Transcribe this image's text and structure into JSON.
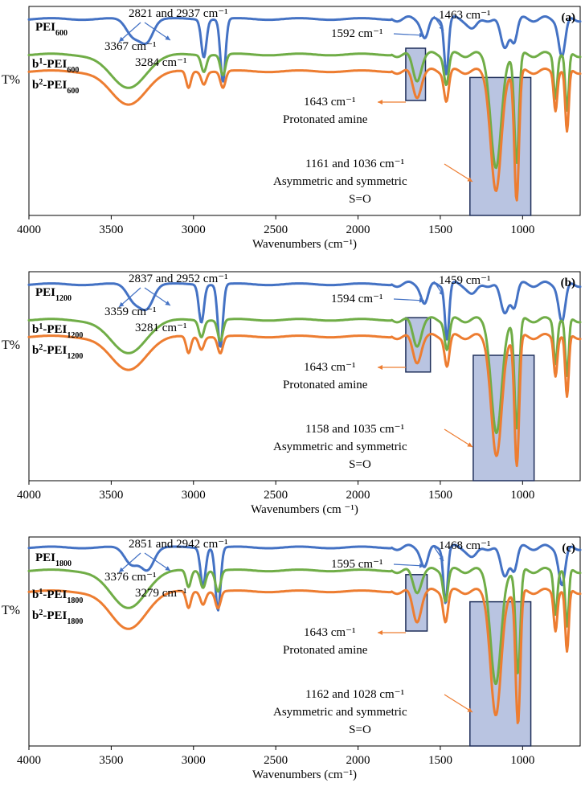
{
  "colors": {
    "blue": "#4472c4",
    "green": "#70ad47",
    "orange": "#ed7d31",
    "box_fill": "#7f94c8",
    "box_edge": "#1f2f5a"
  },
  "chart_data": [
    {
      "type": "line",
      "panel": "(a)",
      "xlabel": "Wavenumbers (cm⁻¹)",
      "ylabel": "T%",
      "xlim": [
        4000,
        650
      ],
      "ylim": [
        0,
        100
      ],
      "xticks": [
        "4000",
        "3500",
        "3000",
        "2500",
        "2000",
        "1500",
        "1000"
      ],
      "xtick_values": [
        4000,
        3500,
        3000,
        2500,
        2000,
        1500,
        1000
      ],
      "series": [
        {
          "name": "PEI",
          "sub": "600",
          "sup": "",
          "color": "#4472c4",
          "base": 94,
          "peaks": [
            [
              3367,
              8,
              60
            ],
            [
              3284,
              10,
              55
            ],
            [
              2937,
              18,
              22
            ],
            [
              2821,
              30,
              22
            ],
            [
              1592,
              9,
              30
            ],
            [
              1463,
              26,
              18
            ],
            [
              1300,
              5,
              40
            ],
            [
              1110,
              14,
              35
            ],
            [
              1050,
              10,
              25
            ],
            [
              760,
              18,
              28
            ]
          ]
        },
        {
          "name": "-PEI",
          "sub": "600",
          "sup": "1",
          "prefix": "b",
          "color": "#70ad47",
          "base": 77,
          "peaks": [
            [
              3400,
              16,
              150
            ],
            [
              2937,
              8,
              22
            ],
            [
              2821,
              10,
              22
            ],
            [
              1643,
              12,
              35
            ],
            [
              1463,
              14,
              20
            ],
            [
              1161,
              55,
              45
            ],
            [
              1036,
              52,
              20
            ],
            [
              800,
              20,
              15
            ],
            [
              730,
              28,
              15
            ]
          ]
        },
        {
          "name": "-PEI",
          "sub": "600",
          "sup": "2",
          "prefix": "b",
          "color": "#ed7d31",
          "base": 69,
          "peaks": [
            [
              3400,
              16,
              150
            ],
            [
              3030,
              8,
              20
            ],
            [
              2937,
              6,
              22
            ],
            [
              2821,
              8,
              22
            ],
            [
              1643,
              12,
              35
            ],
            [
              1463,
              14,
              20
            ],
            [
              1161,
              58,
              45
            ],
            [
              1036,
              62,
              20
            ],
            [
              800,
              18,
              15
            ],
            [
              730,
              30,
              15
            ]
          ]
        }
      ],
      "boxes": [
        [
          1710,
          1590,
          80,
          55
        ],
        [
          1320,
          950,
          66,
          0
        ]
      ],
      "annotations": [
        {
          "text": "2821 and 2937 cm⁻¹"
        },
        {
          "text": "3367 cm⁻¹"
        },
        {
          "text": "3284 cm⁻¹"
        },
        {
          "text": "1463 cm⁻¹"
        },
        {
          "text": "1592 cm⁻¹"
        },
        {
          "text": "1643 cm⁻¹"
        },
        {
          "text": "Protonated amine"
        },
        {
          "text": "1161 and 1036 cm⁻¹"
        },
        {
          "text": "Asymmetric and symmetric"
        },
        {
          "text": "S=O"
        }
      ]
    },
    {
      "type": "line",
      "panel": "(b)",
      "xlabel": "Wavenumbers (cm ⁻¹)",
      "ylabel": "T%",
      "xlim": [
        4000,
        650
      ],
      "ylim": [
        0,
        100
      ],
      "xticks": [
        "4000",
        "3500",
        "3000",
        "2500",
        "2000",
        "1500",
        "1000"
      ],
      "xtick_values": [
        4000,
        3500,
        3000,
        2500,
        2000,
        1500,
        1000
      ],
      "series": [
        {
          "name": "PEI",
          "sub": "1200",
          "sup": "",
          "color": "#4472c4",
          "base": 94,
          "peaks": [
            [
              3359,
              8,
              60
            ],
            [
              3281,
              10,
              55
            ],
            [
              2952,
              18,
              22
            ],
            [
              2837,
              30,
              22
            ],
            [
              1594,
              9,
              30
            ],
            [
              1459,
              26,
              18
            ],
            [
              1300,
              5,
              40
            ],
            [
              1110,
              14,
              35
            ],
            [
              1050,
              10,
              25
            ],
            [
              760,
              18,
              28
            ]
          ]
        },
        {
          "name": "-PEI",
          "sub": "1200",
          "sup": "1",
          "prefix": "b",
          "color": "#70ad47",
          "base": 77,
          "peaks": [
            [
              3400,
              16,
              150
            ],
            [
              2952,
              8,
              22
            ],
            [
              2837,
              10,
              22
            ],
            [
              1643,
              12,
              35
            ],
            [
              1459,
              14,
              20
            ],
            [
              1158,
              55,
              45
            ],
            [
              1035,
              52,
              20
            ],
            [
              800,
              20,
              15
            ],
            [
              730,
              28,
              15
            ]
          ]
        },
        {
          "name": "-PEI",
          "sub": "1200",
          "sup": "2",
          "prefix": "b",
          "color": "#ed7d31",
          "base": 69,
          "peaks": [
            [
              3400,
              16,
              150
            ],
            [
              3030,
              8,
              20
            ],
            [
              2952,
              6,
              22
            ],
            [
              2837,
              8,
              22
            ],
            [
              1643,
              12,
              35
            ],
            [
              1459,
              14,
              20
            ],
            [
              1158,
              58,
              45
            ],
            [
              1035,
              62,
              20
            ],
            [
              800,
              18,
              15
            ],
            [
              730,
              30,
              15
            ]
          ]
        }
      ],
      "boxes": [
        [
          1710,
          1560,
          78,
          52
        ],
        [
          1300,
          930,
          60,
          0
        ]
      ],
      "annotations": [
        {
          "text": "2837 and 2952 cm⁻¹"
        },
        {
          "text": "3359 cm⁻¹"
        },
        {
          "text": "3281 cm⁻¹"
        },
        {
          "text": "1459 cm⁻¹"
        },
        {
          "text": "1594 cm⁻¹"
        },
        {
          "text": "1643 cm⁻¹"
        },
        {
          "text": "Protonated amine"
        },
        {
          "text": "1158 and 1035 cm⁻¹"
        },
        {
          "text": "Asymmetric and symmetric"
        },
        {
          "text": "S=O"
        }
      ]
    },
    {
      "type": "line",
      "panel": "(c)",
      "xlabel": "Wavenumbers (cm⁻¹)",
      "ylabel": "T%",
      "xlim": [
        4000,
        650
      ],
      "ylim": [
        0,
        100
      ],
      "xticks": [
        "4000",
        "3500",
        "3000",
        "2500",
        "2000",
        "1500",
        "1000"
      ],
      "xtick_values": [
        4000,
        3500,
        3000,
        2500,
        2000,
        1500,
        1000
      ],
      "series": [
        {
          "name": "PEI",
          "sub": "1800",
          "sup": "",
          "color": "#4472c4",
          "base": 95,
          "peaks": [
            [
              3376,
              8,
              60
            ],
            [
              3279,
              10,
              55
            ],
            [
              2942,
              18,
              22
            ],
            [
              2851,
              30,
              22
            ],
            [
              1595,
              9,
              30
            ],
            [
              1468,
              26,
              18
            ],
            [
              1300,
              5,
              40
            ],
            [
              1110,
              14,
              35
            ],
            [
              1050,
              10,
              25
            ],
            [
              760,
              18,
              28
            ]
          ]
        },
        {
          "name": "-PEI",
          "sub": "1800",
          "sup": "1",
          "prefix": "b",
          "color": "#70ad47",
          "base": 84,
          "peaks": [
            [
              3400,
              18,
              150
            ],
            [
              3030,
              8,
              20
            ],
            [
              2942,
              8,
              22
            ],
            [
              2851,
              10,
              22
            ],
            [
              1643,
              10,
              35
            ],
            [
              1468,
              14,
              20
            ],
            [
              1162,
              55,
              45
            ],
            [
              1028,
              50,
              20
            ],
            [
              800,
              20,
              15
            ],
            [
              730,
              28,
              15
            ]
          ]
        },
        {
          "name": "-PEI",
          "sub": "1800",
          "sup": "2",
          "prefix": "b",
          "color": "#ed7d31",
          "base": 74,
          "peaks": [
            [
              3400,
              18,
              150
            ],
            [
              3030,
              8,
              20
            ],
            [
              2942,
              6,
              22
            ],
            [
              2851,
              8,
              22
            ],
            [
              1643,
              14,
              35
            ],
            [
              1468,
              14,
              20
            ],
            [
              1162,
              60,
              45
            ],
            [
              1028,
              64,
              20
            ],
            [
              800,
              18,
              15
            ],
            [
              730,
              30,
              15
            ]
          ]
        }
      ],
      "boxes": [
        [
          1710,
          1580,
          82,
          55
        ],
        [
          1320,
          950,
          69,
          0
        ]
      ],
      "annotations": [
        {
          "text": "2851 and 2942 cm⁻¹"
        },
        {
          "text": "3376 cm⁻¹"
        },
        {
          "text": "3279 cm⁻¹"
        },
        {
          "text": "1468 cm⁻¹"
        },
        {
          "text": "1595 cm⁻¹"
        },
        {
          "text": "1643 cm⁻¹"
        },
        {
          "text": "Protonated amine"
        },
        {
          "text": "1162 and 1028 cm⁻¹"
        },
        {
          "text": "Asymmetric and symmetric"
        },
        {
          "text": "S=O"
        }
      ]
    }
  ]
}
